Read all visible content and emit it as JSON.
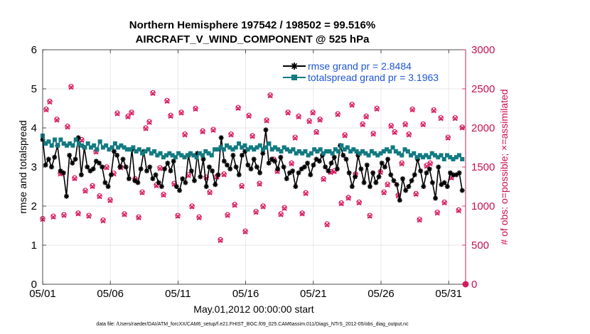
{
  "chart_data": {
    "type": "line",
    "title_line1": "Northern Hemisphere 197542 / 198502 = 99.516%",
    "title_line2": "AIRCRAFT_V_WIND_COMPONENT @ 525 hPa",
    "xlabel": "May.01,2012 00:00:00 start",
    "ylabel": "rmse and totalspread",
    "y2label": "# of obs: o=possible; ×=assimilated",
    "footnote": "data file: /Users/raeder/DAI/ATM_forcXX/CAM6_setup/f.e21.FHIST_BGC.f09_025.CAM6assim.011/Diags_NTrS_2012-05/obs_diag_output.nc",
    "xlim": [
      0,
      31.25
    ],
    "ylim": [
      0,
      6
    ],
    "y2lim": [
      0,
      3000
    ],
    "x_ticks": [
      0,
      5,
      10,
      15,
      20,
      25,
      30
    ],
    "x_tick_labels": [
      "05/01",
      "05/06",
      "05/11",
      "05/16",
      "05/21",
      "05/26",
      "05/31"
    ],
    "y_ticks": [
      0,
      1,
      2,
      3,
      4,
      5,
      6
    ],
    "y_tick_labels": [
      "0",
      "1",
      "2",
      "3",
      "4",
      "5",
      "6"
    ],
    "y2_ticks": [
      0,
      500,
      1000,
      1500,
      2000,
      2500,
      3000
    ],
    "y2_tick_labels": [
      "0",
      "500",
      "1000",
      "1500",
      "2000",
      "2500",
      "3000"
    ],
    "series": [
      {
        "name": "rmse grand pr = 2.8484",
        "color": "#000000",
        "marker": "star",
        "axis": "left",
        "values": [
          3.7,
          3.05,
          3.2,
          3.0,
          3.25,
          3.55,
          2.9,
          2.85,
          2.25,
          3.3,
          3.1,
          3.2,
          3.75,
          2.8,
          3.5,
          3.0,
          2.9,
          2.95,
          3.15,
          3.1,
          3.0,
          2.6,
          2.5,
          2.8,
          3.4,
          3.3,
          3.0,
          3.2,
          3.0,
          2.7,
          3.45,
          2.65,
          2.6,
          2.95,
          3.4,
          2.9,
          3.0,
          2.7,
          2.8,
          2.6,
          2.5,
          2.95,
          3.1,
          2.9,
          3.15,
          2.5,
          2.4,
          2.7,
          2.6,
          3.3,
          2.9,
          2.65,
          3.35,
          2.75,
          3.2,
          2.5,
          3.0,
          2.9,
          2.55,
          2.8,
          3.75,
          3.15,
          3.05,
          2.95,
          3.3,
          3.0,
          2.8,
          3.3,
          3.4,
          3.05,
          2.95,
          3.2,
          3.0,
          2.85,
          3.35,
          3.95,
          3.1,
          3.2,
          3.15,
          2.95,
          3.25,
          3.0,
          2.7,
          2.85,
          2.9,
          2.5,
          2.85,
          2.95,
          3.0,
          3.1,
          2.8,
          3.05,
          3.2,
          3.15,
          3.3,
          3.0,
          2.9,
          3.1,
          3.25,
          2.95,
          3.55,
          3.3,
          3.2,
          2.85,
          2.5,
          2.75,
          3.3,
          2.95,
          2.6,
          3.05,
          2.5,
          2.85,
          2.6,
          2.75,
          3.1,
          3.0,
          3.2,
          2.8,
          2.65,
          2.55,
          2.15,
          2.7,
          2.4,
          2.5,
          2.65,
          2.8,
          3.2,
          2.9,
          2.5,
          2.85,
          2.95,
          2.6,
          2.2,
          3.0,
          2.55,
          2.6,
          2.5,
          2.85,
          2.8,
          2.8,
          2.85,
          2.4
        ]
      },
      {
        "name": "totalspread grand pr = 3.1963",
        "color": "#127a80",
        "marker": "square",
        "axis": "left",
        "values": [
          3.8,
          3.6,
          3.65,
          3.55,
          3.7,
          3.55,
          3.7,
          3.6,
          3.55,
          3.6,
          3.55,
          3.7,
          3.6,
          3.55,
          3.5,
          3.6,
          3.5,
          3.55,
          3.45,
          3.65,
          3.5,
          3.55,
          3.45,
          3.5,
          3.6,
          3.5,
          3.55,
          3.5,
          3.45,
          3.45,
          3.5,
          3.4,
          3.45,
          3.35,
          3.4,
          3.45,
          3.35,
          3.4,
          3.3,
          3.35,
          3.25,
          3.3,
          3.35,
          3.3,
          3.25,
          3.35,
          3.3,
          3.25,
          3.3,
          3.35,
          3.3,
          3.25,
          3.35,
          3.3,
          3.4,
          3.35,
          3.3,
          3.45,
          3.45,
          3.5,
          3.45,
          3.55,
          3.5,
          3.45,
          3.5,
          3.6,
          3.5,
          3.55,
          3.45,
          3.5,
          3.45,
          3.5,
          3.55,
          3.45,
          3.5,
          3.6,
          3.45,
          3.5,
          3.45,
          3.4,
          3.5,
          3.45,
          3.4,
          3.45,
          3.35,
          3.4,
          3.35,
          3.4,
          3.3,
          3.35,
          3.45,
          3.4,
          3.45,
          3.35,
          3.4,
          3.4,
          3.35,
          3.45,
          3.4,
          3.55,
          3.45,
          3.5,
          3.4,
          3.45,
          3.4,
          3.35,
          3.4,
          3.35,
          3.3,
          3.4,
          3.35,
          3.3,
          3.35,
          3.4,
          3.45,
          3.4,
          3.5,
          3.4,
          3.35,
          3.3,
          3.45,
          3.4,
          3.3,
          3.35,
          3.25,
          3.3,
          3.25,
          3.3,
          3.25,
          3.35,
          3.3,
          3.25,
          3.3,
          3.2,
          3.3,
          3.25,
          3.2,
          3.25,
          3.3,
          3.2
        ]
      },
      {
        "name": "# obs possible",
        "color": "#d81b60",
        "marker": "circle",
        "axis": "right",
        "values": [
          840,
          2240,
          2340,
          870,
          2110,
          1420,
          890,
          2020,
          2530,
          1360,
          910,
          1850,
          1200,
          880,
          1260,
          1700,
          1130,
          820,
          1500,
          1080,
          1420,
          2190,
          1500,
          900,
          2150,
          2200,
          1350,
          860,
          1180,
          2000,
          2080,
          2450,
          1270,
          1490,
          1150,
          2350,
          2160,
          1290,
          880,
          2200,
          1920,
          1400,
          1000,
          2250,
          860,
          1960,
          1370,
          1180,
          1980,
          1380,
          570,
          1410,
          890,
          1920,
          1020,
          2260,
          1260,
          680,
          2160,
          1900,
          930,
          1290,
          1000,
          2100,
          2420,
          1600,
          1450,
          900,
          980,
          2200,
          1550,
          1880,
          2150,
          910,
          1170,
          2090,
          2200,
          1950,
          2110,
          1350,
          770,
          1440,
          1450,
          2180,
          1040,
          1910,
          1110,
          2300,
          1410,
          1050,
          2050,
          2150,
          880,
          1930,
          2250,
          1440,
          1180,
          1280,
          2030,
          1950,
          1140,
          1550,
          2050,
          1920,
          2240,
          1160,
          830,
          2050,
          1520,
          1550,
          2230,
          920,
          2130,
          1050,
          1880,
          1370,
          2130,
          950,
          2010
        ]
      },
      {
        "name": "# obs assimilated",
        "color": "#d81b60",
        "marker": "x",
        "axis": "right",
        "values": [
          830,
          2230,
          2330,
          860,
          2100,
          1410,
          880,
          2010,
          2520,
          1350,
          900,
          1840,
          1190,
          870,
          1250,
          1690,
          1120,
          810,
          1490,
          1070,
          1410,
          2180,
          1490,
          890,
          2140,
          2190,
          1340,
          850,
          1170,
          1990,
          2070,
          2440,
          1260,
          1480,
          1140,
          2340,
          2150,
          1280,
          870,
          2190,
          1910,
          1390,
          990,
          2240,
          850,
          1950,
          1360,
          1170,
          1970,
          1370,
          560,
          1400,
          880,
          1910,
          1010,
          2250,
          1250,
          670,
          2150,
          1890,
          920,
          1280,
          990,
          2090,
          2410,
          1590,
          1440,
          890,
          970,
          2190,
          1540,
          1870,
          2140,
          900,
          1160,
          2080,
          2190,
          1940,
          2100,
          1340,
          760,
          1430,
          1440,
          2170,
          1030,
          1900,
          1100,
          2290,
          1400,
          1040,
          2040,
          2140,
          870,
          1920,
          2240,
          1430,
          1170,
          1270,
          2020,
          1940,
          1130,
          1540,
          2040,
          1910,
          2230,
          1150,
          820,
          2040,
          1510,
          1540,
          2220,
          910,
          2120,
          1040,
          1870,
          1360,
          2120,
          940,
          2000
        ]
      }
    ],
    "legend": [
      "rmse grand pr = 2.8484",
      "totalspread grand pr = 3.1963"
    ],
    "extra_points": [
      {
        "x": 31.25,
        "y2": 0,
        "marker": "circle",
        "color": "#d81b60"
      }
    ]
  }
}
